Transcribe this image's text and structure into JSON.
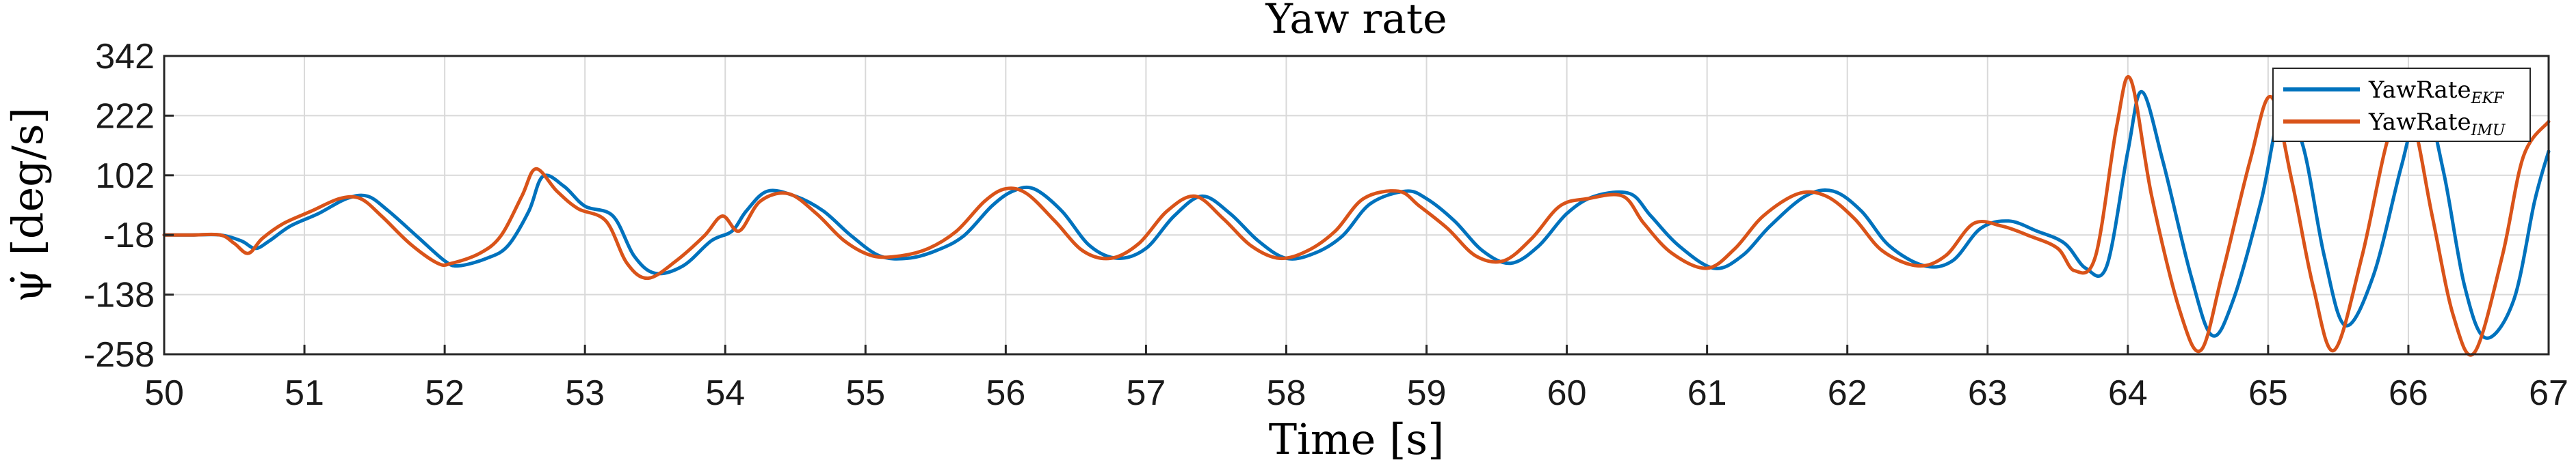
{
  "chart_data": {
    "type": "line",
    "title": "Yaw rate",
    "xlabel": "Time [s]",
    "ylabel": "ψ̇ [deg/s]",
    "xlim": [
      50,
      67
    ],
    "ylim": [
      -258,
      342
    ],
    "xticks": [
      50,
      51,
      52,
      53,
      54,
      55,
      56,
      57,
      58,
      59,
      60,
      61,
      62,
      63,
      64,
      65,
      66,
      67
    ],
    "yticks": [
      -258,
      -138,
      -18,
      102,
      222,
      342
    ],
    "xtick_labels": [
      "50",
      "51",
      "52",
      "53",
      "54",
      "55",
      "56",
      "57",
      "58",
      "59",
      "60",
      "61",
      "62",
      "63",
      "64",
      "65",
      "66",
      "67"
    ],
    "ytick_labels": [
      "-258",
      "-138",
      "-18",
      "102",
      "222",
      "342"
    ],
    "grid": true,
    "legend_position": "top-right",
    "series": [
      {
        "name": "YawRate",
        "subscript": "EKF",
        "color": "#0072BD",
        "x": [
          50,
          50.2,
          50.4,
          50.55,
          50.65,
          50.75,
          50.9,
          51.1,
          51.3,
          51.45,
          51.6,
          51.8,
          52.0,
          52.1,
          52.3,
          52.45,
          52.6,
          52.7,
          52.85,
          53.0,
          53.2,
          53.35,
          53.5,
          53.7,
          53.9,
          54.05,
          54.15,
          54.3,
          54.5,
          54.7,
          54.9,
          55.1,
          55.3,
          55.5,
          55.7,
          55.9,
          56.05,
          56.2,
          56.4,
          56.6,
          56.8,
          57.0,
          57.2,
          57.4,
          57.6,
          57.8,
          58.0,
          58.2,
          58.4,
          58.6,
          58.85,
          59.0,
          59.2,
          59.4,
          59.6,
          59.8,
          60.0,
          60.2,
          60.45,
          60.6,
          60.8,
          61.05,
          61.25,
          61.45,
          61.7,
          61.9,
          62.1,
          62.3,
          62.55,
          62.75,
          62.95,
          63.15,
          63.35,
          63.55,
          63.7,
          63.85,
          64.0,
          64.1,
          64.25,
          64.45,
          64.6,
          64.75,
          64.95,
          65.1,
          65.25,
          65.4,
          65.55,
          65.75,
          65.95,
          66.1,
          66.25,
          66.4,
          66.55,
          66.75,
          66.9,
          67.0
        ],
        "y": [
          -18,
          -18,
          -18,
          -30,
          -45,
          -30,
          0,
          25,
          55,
          60,
          30,
          -20,
          -70,
          -80,
          -65,
          -40,
          30,
          100,
          80,
          40,
          20,
          -60,
          -95,
          -80,
          -30,
          -10,
          30,
          70,
          60,
          30,
          -20,
          -60,
          -65,
          -50,
          -20,
          40,
          70,
          75,
          30,
          -40,
          -65,
          -45,
          20,
          60,
          25,
          -30,
          -65,
          -55,
          -20,
          45,
          70,
          55,
          10,
          -50,
          -75,
          -40,
          25,
          60,
          65,
          20,
          -40,
          -85,
          -60,
          0,
          60,
          70,
          30,
          -40,
          -80,
          -70,
          -5,
          10,
          -10,
          -35,
          -85,
          -80,
          150,
          270,
          130,
          -100,
          -220,
          -150,
          50,
          240,
          160,
          -60,
          -200,
          -100,
          120,
          260,
          110,
          -120,
          -225,
          -150,
          50,
          150
        ]
      },
      {
        "name": "YawRate",
        "subscript": "IMU",
        "color": "#D95319",
        "x": [
          50,
          50.2,
          50.4,
          50.5,
          50.6,
          50.7,
          50.85,
          51.05,
          51.25,
          51.4,
          51.55,
          51.75,
          51.95,
          52.05,
          52.25,
          52.4,
          52.55,
          52.65,
          52.8,
          52.95,
          53.15,
          53.3,
          53.45,
          53.65,
          53.85,
          53.98,
          54.1,
          54.25,
          54.45,
          54.65,
          54.85,
          55.05,
          55.25,
          55.45,
          55.65,
          55.85,
          56.0,
          56.15,
          56.35,
          56.55,
          56.75,
          56.95,
          57.15,
          57.35,
          57.55,
          57.75,
          57.95,
          58.15,
          58.35,
          58.55,
          58.8,
          58.95,
          59.15,
          59.35,
          59.55,
          59.75,
          59.95,
          60.15,
          60.4,
          60.55,
          60.75,
          61.0,
          61.2,
          61.4,
          61.65,
          61.85,
          62.05,
          62.25,
          62.5,
          62.7,
          62.9,
          63.1,
          63.3,
          63.5,
          63.62,
          63.77,
          63.92,
          64.02,
          64.17,
          64.37,
          64.52,
          64.67,
          64.87,
          65.02,
          65.17,
          65.32,
          65.47,
          65.67,
          65.87,
          66.02,
          66.17,
          66.32,
          66.47,
          66.67,
          66.82,
          67.0
        ],
        "y": [
          -18,
          -18,
          -18,
          -35,
          -55,
          -25,
          5,
          30,
          55,
          55,
          20,
          -35,
          -75,
          -75,
          -55,
          -20,
          60,
          115,
          70,
          35,
          10,
          -75,
          -105,
          -70,
          -20,
          20,
          -10,
          50,
          65,
          25,
          -30,
          -60,
          -60,
          -45,
          -10,
          50,
          75,
          65,
          10,
          -50,
          -65,
          -35,
          30,
          60,
          15,
          -40,
          -65,
          -50,
          -10,
          55,
          70,
          40,
          -5,
          -60,
          -70,
          -25,
          40,
          55,
          60,
          5,
          -55,
          -85,
          -45,
          20,
          65,
          60,
          15,
          -50,
          -80,
          -60,
          5,
          0,
          -20,
          -45,
          -90,
          -60,
          200,
          295,
          60,
          -170,
          -250,
          -100,
          130,
          260,
          90,
          -120,
          -250,
          -60,
          190,
          220,
          20,
          -180,
          -255,
          -60,
          140,
          210
        ]
      }
    ]
  }
}
